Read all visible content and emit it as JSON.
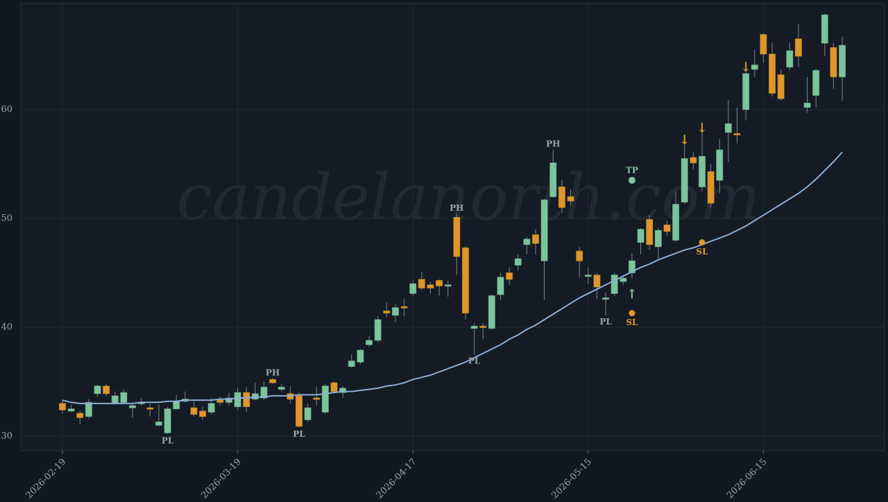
{
  "chart_data": {
    "type": "candlestick",
    "watermark": "candelanorth.com",
    "categories": [
      "2026-02-19",
      null,
      null,
      null,
      null,
      null,
      null,
      null,
      null,
      null,
      null,
      null,
      null,
      null,
      null,
      null,
      null,
      null,
      null,
      null,
      "2026-03-19",
      null,
      null,
      null,
      null,
      null,
      null,
      null,
      null,
      null,
      null,
      null,
      null,
      null,
      null,
      null,
      null,
      null,
      null,
      null,
      "2026-04-17",
      null,
      null,
      null,
      null,
      null,
      null,
      null,
      null,
      null,
      null,
      null,
      null,
      null,
      null,
      null,
      null,
      null,
      null,
      null,
      "2026-05-15",
      null,
      null,
      null,
      null,
      null,
      null,
      null,
      null,
      null,
      null,
      null,
      null,
      null,
      null,
      null,
      null,
      null,
      null,
      null,
      "2026-06-15",
      null,
      null,
      null,
      null,
      null,
      null,
      null,
      null,
      null
    ],
    "open": [
      33.0,
      32.3,
      32.1,
      31.8,
      33.9,
      34.6,
      33.0,
      33.1,
      32.6,
      33.0,
      32.6,
      31.0,
      30.3,
      32.5,
      33.2,
      32.6,
      32.3,
      32.2,
      33.3,
      33.1,
      32.7,
      34.0,
      33.4,
      33.5,
      35.2,
      34.3,
      33.9,
      33.7,
      31.5,
      33.5,
      32.2,
      34.9,
      34.0,
      36.4,
      36.8,
      38.4,
      38.8,
      41.5,
      41.1,
      41.9,
      43.1,
      44.4,
      43.9,
      44.3,
      43.8,
      50.1,
      47.3,
      39.9,
      40.1,
      39.9,
      43.0,
      45.0,
      45.7,
      47.6,
      48.5,
      46.1,
      52.0,
      52.9,
      52.0,
      47.0,
      44.7,
      44.8,
      42.6,
      43.1,
      44.2,
      45.0,
      47.8,
      49.9,
      47.4,
      49.4,
      48.0,
      51.5,
      55.6,
      52.9,
      54.3,
      53.5,
      57.9,
      57.8,
      60.0,
      63.7,
      66.9,
      65.1,
      63.2,
      63.9,
      66.5,
      60.2,
      61.3,
      66.1,
      65.7,
      63.0
    ],
    "high": [
      33.3,
      32.9,
      32.3,
      33.4,
      34.7,
      34.8,
      34.1,
      34.3,
      33.0,
      33.5,
      33.0,
      32.9,
      32.7,
      33.8,
      34.1,
      33.2,
      32.7,
      33.5,
      33.6,
      34.0,
      34.4,
      34.5,
      34.9,
      35.0,
      35.3,
      34.8,
      34.6,
      34.0,
      33.0,
      34.5,
      34.8,
      35.0,
      34.6,
      37.5,
      38.0,
      39.2,
      41.0,
      42.3,
      42.1,
      42.6,
      44.3,
      45.1,
      44.2,
      44.4,
      44.3,
      50.4,
      47.5,
      40.4,
      40.4,
      43.0,
      45.0,
      45.5,
      46.7,
      48.3,
      49.0,
      51.8,
      56.3,
      53.5,
      52.7,
      47.4,
      45.5,
      45.0,
      43.2,
      45.0,
      44.8,
      46.8,
      49.1,
      50.3,
      49.1,
      49.8,
      52.5,
      57.0,
      56.1,
      58.1,
      55.0,
      57.3,
      60.9,
      60.2,
      63.7,
      65.5,
      67.0,
      66.1,
      63.7,
      66.2,
      67.9,
      63.0,
      63.8,
      68.8,
      66.1,
      66.7
    ],
    "low": [
      32.1,
      32.2,
      31.1,
      31.6,
      33.6,
      33.7,
      32.9,
      33.0,
      31.7,
      32.8,
      31.8,
      30.9,
      30.2,
      32.5,
      33.1,
      31.8,
      31.5,
      32.0,
      32.8,
      32.8,
      32.4,
      32.2,
      33.3,
      33.3,
      34.8,
      34.1,
      33.0,
      30.8,
      31.3,
      32.8,
      32.0,
      33.9,
      33.5,
      36.3,
      36.6,
      38.2,
      38.6,
      40.9,
      40.5,
      41.0,
      42.9,
      43.4,
      43.1,
      42.9,
      42.8,
      44.8,
      40.7,
      37.5,
      38.9,
      39.8,
      42.5,
      43.9,
      45.2,
      46.7,
      46.7,
      42.5,
      51.9,
      50.5,
      51.2,
      44.6,
      44.0,
      42.6,
      41.1,
      42.9,
      43.9,
      44.5,
      46.7,
      47.1,
      46.3,
      48.4,
      47.8,
      51.3,
      54.5,
      52.5,
      51.0,
      52.3,
      55.2,
      56.9,
      59.0,
      63.0,
      64.3,
      61.2,
      60.8,
      63.6,
      63.9,
      59.7,
      60.2,
      64.9,
      61.9,
      60.8
    ],
    "close": [
      32.4,
      32.5,
      31.7,
      33.1,
      34.6,
      33.9,
      33.7,
      34.0,
      32.8,
      33.1,
      32.5,
      31.3,
      32.5,
      33.2,
      33.4,
      32.0,
      31.8,
      33.0,
      33.1,
      33.5,
      34.0,
      32.7,
      33.9,
      34.5,
      34.9,
      34.5,
      33.4,
      30.9,
      32.6,
      33.4,
      34.6,
      34.1,
      34.4,
      36.9,
      37.9,
      38.8,
      40.7,
      41.3,
      41.8,
      41.8,
      44.0,
      43.6,
      43.6,
      43.8,
      43.9,
      46.5,
      41.3,
      40.1,
      40.0,
      42.9,
      44.6,
      44.4,
      46.3,
      48.1,
      47.7,
      51.7,
      55.1,
      51.0,
      51.6,
      46.1,
      44.8,
      43.7,
      42.7,
      44.8,
      44.5,
      46.1,
      49.0,
      47.6,
      48.9,
      48.8,
      51.3,
      55.5,
      55.1,
      55.7,
      51.4,
      56.3,
      58.7,
      57.7,
      63.3,
      64.1,
      65.1,
      61.5,
      61.0,
      65.4,
      64.9,
      60.6,
      63.6,
      68.7,
      63.0,
      65.9
    ],
    "up_color": "#7cc49c",
    "down_color": "#e0962a",
    "series": [
      {
        "color": "#8eaed6",
        "values": [
          33.3,
          33.1,
          33.0,
          33.0,
          33.0,
          33.0,
          33.0,
          33.0,
          33.0,
          33.1,
          33.1,
          33.1,
          33.2,
          33.2,
          33.3,
          33.3,
          33.3,
          33.3,
          33.4,
          33.4,
          33.5,
          33.5,
          33.6,
          33.6,
          33.7,
          33.7,
          33.7,
          33.8,
          33.8,
          33.8,
          33.9,
          34.0,
          34.1,
          34.1,
          34.2,
          34.3,
          34.4,
          34.6,
          34.7,
          34.9,
          35.2,
          35.4,
          35.6,
          35.9,
          36.2,
          36.5,
          36.8,
          37.2,
          37.6,
          38.0,
          38.4,
          38.9,
          39.3,
          39.8,
          40.2,
          40.7,
          41.2,
          41.7,
          42.2,
          42.7,
          43.1,
          43.5,
          43.9,
          44.3,
          44.7,
          45.1,
          45.5,
          45.8,
          46.2,
          46.5,
          46.8,
          47.1,
          47.3,
          47.6,
          47.9,
          48.2,
          48.5,
          48.9,
          49.3,
          49.8,
          50.3,
          50.8,
          51.3,
          51.8,
          52.3,
          52.9,
          53.6,
          54.4,
          55.2,
          56.1
        ]
      }
    ],
    "pivot_labels": [
      null,
      null,
      null,
      null,
      null,
      null,
      null,
      null,
      null,
      null,
      null,
      null,
      "PL",
      null,
      null,
      null,
      null,
      null,
      null,
      null,
      null,
      null,
      null,
      null,
      "PH",
      null,
      null,
      "PL",
      null,
      null,
      null,
      null,
      null,
      null,
      null,
      null,
      null,
      null,
      null,
      null,
      null,
      null,
      null,
      null,
      null,
      "PH",
      null,
      "PL",
      null,
      null,
      null,
      null,
      null,
      null,
      null,
      null,
      "PH",
      null,
      null,
      null,
      null,
      null,
      "PL",
      null,
      null,
      null,
      null,
      null,
      null,
      null,
      null,
      null,
      null,
      null,
      null,
      null,
      null,
      null,
      null,
      null,
      null,
      null,
      null,
      null,
      null,
      null,
      null,
      null,
      null,
      null
    ],
    "signals": [
      null,
      null,
      null,
      null,
      null,
      null,
      null,
      null,
      null,
      null,
      null,
      null,
      null,
      null,
      null,
      null,
      null,
      null,
      null,
      null,
      null,
      null,
      null,
      null,
      null,
      null,
      null,
      null,
      null,
      null,
      null,
      null,
      null,
      null,
      null,
      null,
      null,
      null,
      null,
      null,
      null,
      null,
      null,
      null,
      null,
      null,
      null,
      null,
      null,
      null,
      null,
      null,
      null,
      null,
      null,
      null,
      null,
      null,
      null,
      null,
      null,
      null,
      null,
      null,
      null,
      "↑",
      null,
      null,
      null,
      null,
      null,
      "↓",
      null,
      "↓",
      null,
      null,
      null,
      null,
      "↓",
      null,
      null,
      null,
      null,
      null,
      null,
      null,
      null,
      null,
      null,
      null
    ],
    "tp_label": "TP",
    "tp": [
      null,
      null,
      null,
      null,
      null,
      null,
      null,
      null,
      null,
      null,
      null,
      null,
      null,
      null,
      null,
      null,
      null,
      null,
      null,
      null,
      null,
      null,
      null,
      null,
      null,
      null,
      null,
      null,
      null,
      null,
      null,
      null,
      null,
      null,
      null,
      null,
      null,
      null,
      null,
      null,
      null,
      null,
      null,
      null,
      null,
      null,
      null,
      null,
      null,
      null,
      null,
      null,
      null,
      null,
      null,
      null,
      null,
      null,
      null,
      null,
      null,
      null,
      null,
      null,
      null,
      53.5,
      null,
      null,
      null,
      null,
      null,
      null,
      null,
      null,
      null,
      null,
      null,
      null,
      null,
      null,
      null,
      null,
      null,
      null,
      null,
      null,
      null,
      null,
      null,
      null
    ],
    "sl_label": "SL",
    "sl": [
      null,
      null,
      null,
      null,
      null,
      null,
      null,
      null,
      null,
      null,
      null,
      null,
      null,
      null,
      null,
      null,
      null,
      null,
      null,
      null,
      null,
      null,
      null,
      null,
      null,
      null,
      null,
      null,
      null,
      null,
      null,
      null,
      null,
      null,
      null,
      null,
      null,
      null,
      null,
      null,
      null,
      null,
      null,
      null,
      null,
      null,
      null,
      null,
      null,
      null,
      null,
      null,
      null,
      null,
      null,
      null,
      null,
      null,
      null,
      null,
      null,
      null,
      null,
      null,
      null,
      41.3,
      null,
      null,
      null,
      null,
      null,
      null,
      null,
      47.8,
      null,
      null,
      null,
      null,
      null,
      null,
      null,
      null,
      null,
      null,
      null,
      null,
      null,
      null,
      null,
      null
    ],
    "ylim": [
      28.66,
      69.75
    ],
    "yticks": [
      30,
      40,
      50,
      60
    ],
    "grid": true
  }
}
